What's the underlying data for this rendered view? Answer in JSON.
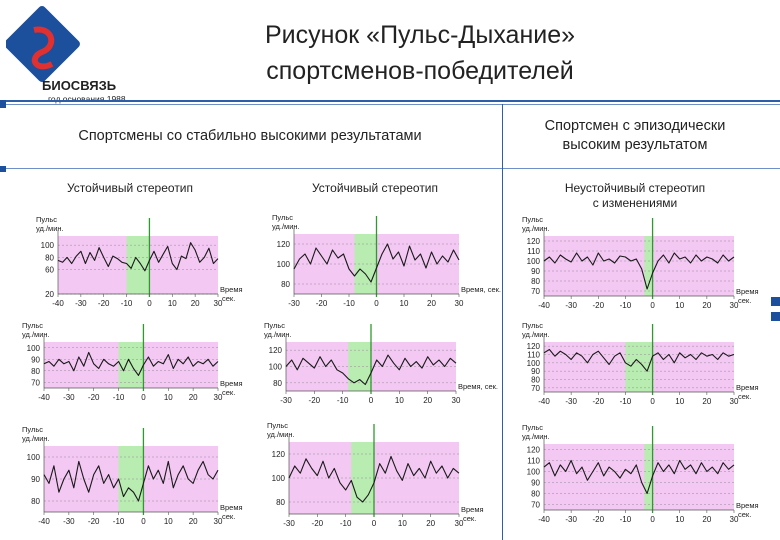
{
  "logo": {
    "brand": "БИОСВЯЗЬ",
    "founded": "год основания 1988"
  },
  "title": {
    "line1": "Рисунок «Пульс-Дыхание»",
    "line2": "спортсменов-победителей"
  },
  "headers": {
    "stable": "Спортсмены со стабильно высокими результатами",
    "episodic_line1": "Спортсмен с эпизодически",
    "episodic_line2": "высоким результатом"
  },
  "columns": {
    "col1": "Устойчивый стереотип",
    "col2": "Устойчивый стереотип",
    "col3_line1": "Неустойчивый стереотип",
    "col3_line2": "с изменениями"
  },
  "colors": {
    "accent": "#1c4f9c",
    "pink_zone": "#f3c8f3",
    "green_zone": "#b8ecb0",
    "marker": "#2e9a2e"
  },
  "chart_data": [
    {
      "type": "line",
      "id": "c1",
      "ylabel_line1": "Пульс",
      "ylabel_line2": "уд./мин.",
      "xlabel_line1": "Время",
      "xlabel_line2": "сек.",
      "ylim": [
        20,
        115
      ],
      "yticks": [
        "20",
        "60",
        "80",
        "100"
      ],
      "xlim": [
        -40,
        30
      ],
      "xticks": [
        "-40",
        "-30",
        "-20",
        "-10",
        "0",
        "10",
        "20",
        "30"
      ],
      "green_zone": [
        -10,
        0
      ],
      "x": [
        -40,
        -38,
        -36,
        -34,
        -32,
        -30,
        -28,
        -26,
        -24,
        -22,
        -20,
        -18,
        -16,
        -14,
        -12,
        -10,
        -8,
        -6,
        -4,
        -2,
        0,
        2,
        4,
        6,
        8,
        10,
        12,
        14,
        16,
        18,
        20,
        22,
        24,
        26,
        28,
        30
      ],
      "y": [
        75,
        72,
        80,
        70,
        82,
        90,
        70,
        88,
        75,
        96,
        80,
        65,
        82,
        78,
        72,
        70,
        62,
        80,
        70,
        58,
        75,
        90,
        72,
        85,
        98,
        70,
        60,
        82,
        78,
        104,
        92,
        72,
        80,
        95,
        70,
        78
      ]
    },
    {
      "type": "line",
      "id": "c2",
      "ylabel_line1": "Пульс",
      "ylabel_line2": "уд./мин.",
      "xlabel_line1": "Время, сек.",
      "xlabel_line2": "",
      "ylim": [
        70,
        130
      ],
      "yticks": [
        "80",
        "100",
        "120"
      ],
      "xlim": [
        -30,
        30
      ],
      "xticks": [
        "-30",
        "-20",
        "-10",
        "0",
        "10",
        "20",
        "30"
      ],
      "green_zone": [
        -8,
        0
      ],
      "x": [
        -30,
        -28,
        -26,
        -24,
        -22,
        -20,
        -18,
        -16,
        -14,
        -12,
        -10,
        -8,
        -6,
        -4,
        -2,
        0,
        2,
        4,
        6,
        8,
        10,
        12,
        14,
        16,
        18,
        20,
        22,
        24,
        26,
        28,
        30
      ],
      "y": [
        95,
        105,
        110,
        100,
        116,
        108,
        100,
        114,
        106,
        110,
        95,
        88,
        95,
        90,
        82,
        96,
        110,
        120,
        105,
        112,
        98,
        118,
        104,
        110,
        96,
        112,
        100,
        108,
        102,
        114,
        104
      ]
    },
    {
      "type": "line",
      "id": "c3",
      "ylabel_line1": "Пульс",
      "ylabel_line2": "уд./мин.",
      "xlabel_line1": "Время",
      "xlabel_line2": "сек.",
      "ylim": [
        65,
        125
      ],
      "yticks": [
        "70",
        "80",
        "90",
        "100",
        "110",
        "120"
      ],
      "xlim": [
        -40,
        30
      ],
      "xticks": [
        "-40",
        "-30",
        "-20",
        "-10",
        "0",
        "10",
        "20",
        "30"
      ],
      "green_zone": [
        -3,
        0
      ],
      "x": [
        -40,
        -38,
        -36,
        -34,
        -32,
        -30,
        -28,
        -26,
        -24,
        -22,
        -20,
        -18,
        -16,
        -14,
        -12,
        -10,
        -8,
        -6,
        -4,
        -2,
        0,
        2,
        4,
        6,
        8,
        10,
        12,
        14,
        16,
        18,
        20,
        22,
        24,
        26,
        28,
        30
      ],
      "y": [
        100,
        104,
        98,
        106,
        102,
        99,
        108,
        100,
        104,
        96,
        108,
        100,
        102,
        98,
        105,
        104,
        100,
        102,
        92,
        72,
        88,
        100,
        106,
        98,
        108,
        102,
        104,
        98,
        106,
        100,
        104,
        102,
        98,
        106,
        100,
        104
      ]
    },
    {
      "type": "line",
      "id": "c4",
      "ylabel_line1": "Пульс",
      "ylabel_line2": "уд./мин.",
      "xlabel_line1": "Время",
      "xlabel_line2": "сек.",
      "ylim": [
        65,
        105
      ],
      "yticks": [
        "70",
        "80",
        "90",
        "100"
      ],
      "xlim": [
        -40,
        30
      ],
      "xticks": [
        "-40",
        "-30",
        "-20",
        "-10",
        "0",
        "10",
        "20",
        "30"
      ],
      "green_zone": [
        -10,
        0
      ],
      "x": [
        -40,
        -38,
        -36,
        -34,
        -32,
        -30,
        -28,
        -26,
        -24,
        -22,
        -20,
        -18,
        -16,
        -14,
        -12,
        -10,
        -8,
        -6,
        -4,
        -2,
        0,
        2,
        4,
        6,
        8,
        10,
        12,
        14,
        16,
        18,
        20,
        22,
        24,
        26,
        28,
        30
      ],
      "y": [
        86,
        88,
        84,
        90,
        86,
        88,
        80,
        92,
        84,
        96,
        86,
        82,
        90,
        86,
        84,
        88,
        80,
        90,
        82,
        76,
        85,
        92,
        84,
        88,
        86,
        94,
        82,
        90,
        86,
        92,
        84,
        88,
        86,
        90,
        84,
        88
      ]
    },
    {
      "type": "line",
      "id": "c5",
      "ylabel_line1": "Пульс",
      "ylabel_line2": "уд./мин.",
      "xlabel_line1": "Время, сек.",
      "xlabel_line2": "",
      "ylim": [
        70,
        130
      ],
      "yticks": [
        "80",
        "100",
        "120"
      ],
      "xlim": [
        -30,
        30
      ],
      "xticks": [
        "-30",
        "-20",
        "-10",
        "0",
        "10",
        "20",
        "30"
      ],
      "green_zone": [
        -8,
        0
      ],
      "x": [
        -30,
        -28,
        -26,
        -24,
        -22,
        -20,
        -18,
        -16,
        -14,
        -12,
        -10,
        -8,
        -6,
        -4,
        -2,
        0,
        2,
        4,
        6,
        8,
        10,
        12,
        14,
        16,
        18,
        20,
        22,
        24,
        26,
        28,
        30
      ],
      "y": [
        100,
        108,
        96,
        110,
        104,
        98,
        112,
        100,
        108,
        96,
        92,
        85,
        80,
        84,
        78,
        92,
        108,
        100,
        114,
        104,
        96,
        110,
        100,
        106,
        98,
        112,
        102,
        108,
        100,
        110,
        104
      ]
    },
    {
      "type": "line",
      "id": "c6",
      "ylabel_line1": "Пульс",
      "ylabel_line2": "уд./мин.",
      "xlabel_line1": "Время",
      "xlabel_line2": "сек.",
      "ylim": [
        65,
        125
      ],
      "yticks": [
        "70",
        "80",
        "90",
        "100",
        "110",
        "120"
      ],
      "xlim": [
        -40,
        30
      ],
      "xticks": [
        "-40",
        "-30",
        "-20",
        "-10",
        "0",
        "10",
        "20",
        "30"
      ],
      "green_zone": [
        -10,
        0
      ],
      "x": [
        -40,
        -38,
        -36,
        -34,
        -32,
        -30,
        -28,
        -26,
        -24,
        -22,
        -20,
        -18,
        -16,
        -14,
        -12,
        -10,
        -8,
        -6,
        -4,
        -2,
        0,
        2,
        4,
        6,
        8,
        10,
        12,
        14,
        16,
        18,
        20,
        22,
        24,
        26,
        28,
        30
      ],
      "y": [
        112,
        116,
        108,
        114,
        110,
        104,
        112,
        108,
        100,
        110,
        114,
        106,
        98,
        108,
        112,
        100,
        96,
        104,
        98,
        90,
        108,
        112,
        104,
        110,
        100,
        112,
        106,
        110,
        104,
        112,
        108,
        110,
        104,
        112,
        108,
        110
      ]
    },
    {
      "type": "line",
      "id": "c7",
      "ylabel_line1": "Пульс",
      "ylabel_line2": "уд./мин.",
      "xlabel_line1": "Время",
      "xlabel_line2": "сек.",
      "ylim": [
        75,
        105
      ],
      "yticks": [
        "80",
        "90",
        "100"
      ],
      "xlim": [
        -40,
        30
      ],
      "xticks": [
        "-40",
        "-30",
        "-20",
        "-10",
        "0",
        "10",
        "20",
        "30"
      ],
      "green_zone": [
        -10,
        0
      ],
      "x": [
        -40,
        -38,
        -36,
        -34,
        -32,
        -30,
        -28,
        -26,
        -24,
        -22,
        -20,
        -18,
        -16,
        -14,
        -12,
        -10,
        -8,
        -6,
        -4,
        -2,
        0,
        2,
        4,
        6,
        8,
        10,
        12,
        14,
        16,
        18,
        20,
        22,
        24,
        26,
        28,
        30
      ],
      "y": [
        92,
        88,
        96,
        84,
        90,
        94,
        86,
        98,
        90,
        84,
        92,
        96,
        88,
        92,
        86,
        90,
        82,
        86,
        84,
        80,
        88,
        96,
        90,
        94,
        88,
        98,
        86,
        92,
        96,
        90,
        88,
        94,
        98,
        92,
        90,
        94
      ]
    },
    {
      "type": "line",
      "id": "c8",
      "ylabel_line1": "Пульс",
      "ylabel_line2": "уд./мин.",
      "xlabel_line1": "Время",
      "xlabel_line2": "сек.",
      "ylim": [
        70,
        130
      ],
      "yticks": [
        "80",
        "100",
        "120"
      ],
      "xlim": [
        -30,
        30
      ],
      "xticks": [
        "-30",
        "-20",
        "-10",
        "0",
        "10",
        "20",
        "30"
      ],
      "green_zone": [
        -8,
        0
      ],
      "x": [
        -30,
        -28,
        -26,
        -24,
        -22,
        -20,
        -18,
        -16,
        -14,
        -12,
        -10,
        -8,
        -6,
        -4,
        -2,
        0,
        2,
        4,
        6,
        8,
        10,
        12,
        14,
        16,
        18,
        20,
        22,
        24,
        26,
        28,
        30
      ],
      "y": [
        100,
        110,
        104,
        116,
        108,
        102,
        114,
        100,
        108,
        96,
        90,
        98,
        84,
        80,
        86,
        96,
        112,
        104,
        118,
        106,
        98,
        112,
        102,
        108,
        100,
        114,
        104,
        110,
        100,
        108,
        104
      ]
    },
    {
      "type": "line",
      "id": "c9",
      "ylabel_line1": "Пульс",
      "ylabel_line2": "уд./мин.",
      "xlabel_line1": "Время",
      "xlabel_line2": "сек.",
      "ylim": [
        65,
        125
      ],
      "yticks": [
        "70",
        "80",
        "90",
        "100",
        "110",
        "120"
      ],
      "xlim": [
        -40,
        30
      ],
      "xticks": [
        "-40",
        "-30",
        "-20",
        "-10",
        "0",
        "10",
        "20",
        "30"
      ],
      "green_zone": [
        -3,
        0
      ],
      "x": [
        -40,
        -38,
        -36,
        -34,
        -32,
        -30,
        -28,
        -26,
        -24,
        -22,
        -20,
        -18,
        -16,
        -14,
        -12,
        -10,
        -8,
        -6,
        -4,
        -2,
        0,
        2,
        4,
        6,
        8,
        10,
        12,
        14,
        16,
        18,
        20,
        22,
        24,
        26,
        28,
        30
      ],
      "y": [
        104,
        108,
        96,
        106,
        100,
        110,
        98,
        104,
        92,
        100,
        108,
        96,
        104,
        100,
        94,
        102,
        98,
        106,
        90,
        80,
        96,
        108,
        100,
        106,
        98,
        110,
        102,
        106,
        98,
        108,
        100,
        104,
        98,
        108,
        102,
        106
      ]
    }
  ]
}
